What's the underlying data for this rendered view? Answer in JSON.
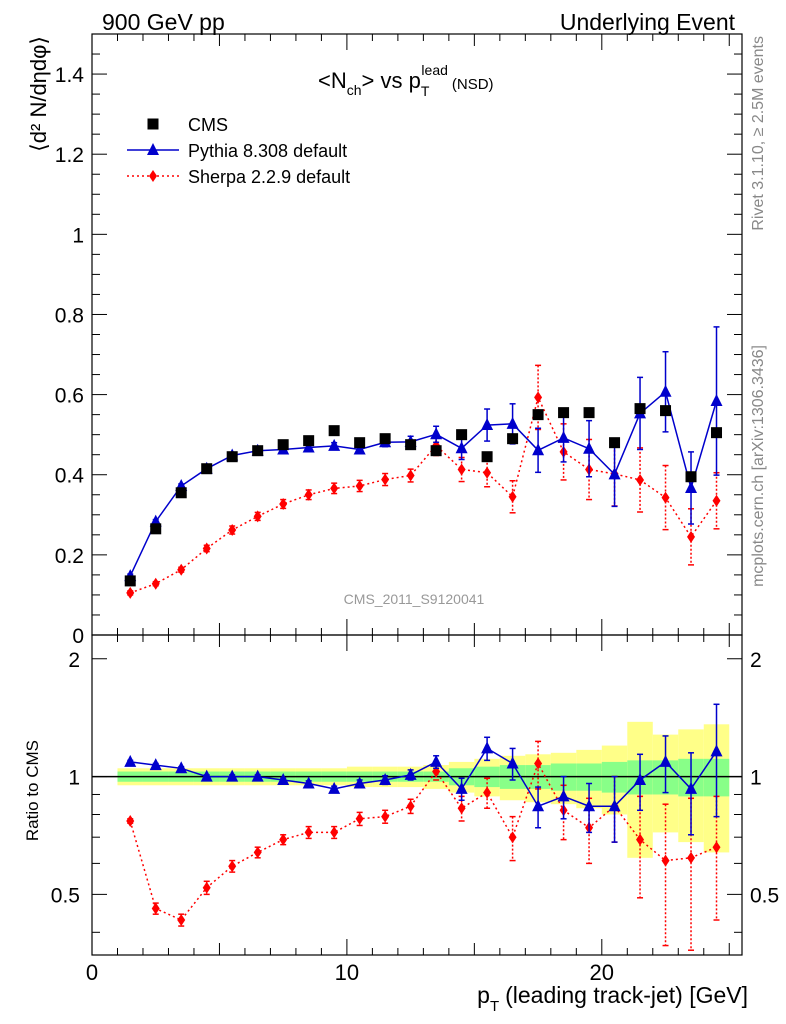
{
  "header": {
    "left": "900 GeV pp",
    "right": "Underlying Event"
  },
  "side_text": {
    "top": "Rivet 3.1.10, ≥ 2.5M events",
    "bottom": "mcplots.cern.ch [arXiv:1306.3436]"
  },
  "analysis_label": "CMS_2011_S9120041",
  "chart_data": {
    "type": "scatter",
    "title": {
      "prefix": "<N",
      "sub1": "ch",
      "mid": "> vs p",
      "sub2": "T",
      "sup": "lead",
      "suffix": "(NSD)"
    },
    "xlabel": {
      "p": "p",
      "sub": "T",
      "rest": "(leading track-jet) [GeV]"
    },
    "ylabel": "⟨d² N/dηdφ⟩",
    "ratio_ylabel": "Ratio to CMS",
    "xlim": [
      0,
      25.5
    ],
    "ylim": [
      0,
      1.5
    ],
    "ratio_ylim": [
      0.35,
      2.3
    ],
    "xticks": [
      0,
      10,
      20
    ],
    "yticks": [
      0,
      0.2,
      0.4,
      0.6,
      0.8,
      1,
      1.2,
      1.4
    ],
    "ytick_labels": [
      "0",
      "0.2",
      "0.4",
      "0.6",
      "0.8",
      "1",
      "1.2",
      "1.4"
    ],
    "ratio_yticks": [
      0.5,
      1,
      2
    ],
    "ratio_ytick_labels": [
      "0.5",
      "1",
      "2"
    ],
    "legend_position": "top-left",
    "x": [
      1.5,
      2.5,
      3.5,
      4.5,
      5.5,
      6.5,
      7.5,
      8.5,
      9.5,
      10.5,
      11.5,
      12.5,
      13.5,
      14.5,
      15.5,
      16.5,
      17.5,
      18.5,
      19.5,
      20.5,
      21.5,
      22.5,
      23.5,
      24.5
    ],
    "bin_edges": [
      1,
      2,
      3,
      4,
      5,
      6,
      7,
      8,
      9,
      10,
      11,
      12,
      13,
      14,
      15,
      16,
      17,
      18,
      19,
      20,
      21,
      22,
      23,
      24,
      25
    ],
    "series": [
      {
        "name": "CMS",
        "color": "#000000",
        "marker": "square",
        "values": [
          0.135,
          0.265,
          0.355,
          0.415,
          0.445,
          0.46,
          0.475,
          0.485,
          0.51,
          0.48,
          0.49,
          0.475,
          0.46,
          0.5,
          0.445,
          0.49,
          0.55,
          0.555,
          0.555,
          0.48,
          0.565,
          0.56,
          0.395,
          0.505
        ],
        "band_stat": [
          0.03,
          0.03,
          0.03,
          0.03,
          0.03,
          0.03,
          0.03,
          0.03,
          0.03,
          0.03,
          0.03,
          0.03,
          0.03,
          0.05,
          0.06,
          0.07,
          0.07,
          0.08,
          0.08,
          0.09,
          0.1,
          0.1,
          0.11,
          0.11
        ],
        "band_total": [
          0.05,
          0.05,
          0.05,
          0.05,
          0.05,
          0.05,
          0.05,
          0.05,
          0.05,
          0.06,
          0.06,
          0.06,
          0.07,
          0.09,
          0.11,
          0.13,
          0.14,
          0.15,
          0.17,
          0.2,
          0.38,
          0.28,
          0.32,
          0.36
        ]
      },
      {
        "name": "Pythia 8.308 default",
        "color": "#0000cc",
        "marker": "triangle",
        "line": "solid",
        "values": [
          0.147,
          0.283,
          0.372,
          0.415,
          0.448,
          0.46,
          0.463,
          0.468,
          0.472,
          0.463,
          0.481,
          0.482,
          0.501,
          0.466,
          0.524,
          0.527,
          0.461,
          0.492,
          0.465,
          0.401,
          0.553,
          0.607,
          0.367,
          0.584
        ],
        "errors": [
          0.005,
          0.005,
          0.005,
          0.005,
          0.005,
          0.005,
          0.006,
          0.007,
          0.008,
          0.009,
          0.011,
          0.014,
          0.02,
          0.028,
          0.04,
          0.05,
          0.055,
          0.06,
          0.07,
          0.08,
          0.09,
          0.1,
          0.09,
          0.185
        ],
        "ratio": [
          1.09,
          1.07,
          1.05,
          1.0,
          1.0,
          1.0,
          0.98,
          0.96,
          0.93,
          0.96,
          0.98,
          1.01,
          1.09,
          0.93,
          1.18,
          1.08,
          0.84,
          0.89,
          0.84,
          0.84,
          0.98,
          1.09,
          0.93,
          1.16
        ],
        "ratio_errors": [
          0.01,
          0.01,
          0.01,
          0.01,
          0.01,
          0.01,
          0.01,
          0.015,
          0.015,
          0.02,
          0.025,
          0.03,
          0.04,
          0.06,
          0.08,
          0.1,
          0.1,
          0.11,
          0.12,
          0.16,
          0.16,
          0.18,
          0.22,
          0.37
        ]
      },
      {
        "name": "Sherpa 2.2.9 default",
        "color": "#ff0000",
        "marker": "diamond",
        "line": "dotted",
        "values": [
          0.105,
          0.128,
          0.163,
          0.216,
          0.262,
          0.296,
          0.327,
          0.35,
          0.366,
          0.372,
          0.388,
          0.398,
          0.473,
          0.413,
          0.405,
          0.345,
          0.593,
          0.457,
          0.413,
          0.402,
          0.387,
          0.343,
          0.245,
          0.335
        ],
        "errors": [
          0.005,
          0.005,
          0.006,
          0.008,
          0.01,
          0.01,
          0.011,
          0.012,
          0.013,
          0.014,
          0.015,
          0.016,
          0.025,
          0.03,
          0.035,
          0.04,
          0.08,
          0.07,
          0.075,
          0.08,
          0.08,
          0.08,
          0.07,
          0.07
        ],
        "ratio": [
          0.77,
          0.46,
          0.43,
          0.52,
          0.59,
          0.64,
          0.69,
          0.72,
          0.72,
          0.78,
          0.79,
          0.84,
          1.03,
          0.83,
          0.91,
          0.7,
          1.08,
          0.82,
          0.74,
          0.84,
          0.69,
          0.61,
          0.62,
          0.66
        ],
        "ratio_errors": [
          0.01,
          0.015,
          0.015,
          0.02,
          0.02,
          0.02,
          0.02,
          0.025,
          0.025,
          0.03,
          0.03,
          0.035,
          0.05,
          0.06,
          0.08,
          0.09,
          0.15,
          0.13,
          0.14,
          0.16,
          0.2,
          0.24,
          0.26,
          0.23
        ]
      }
    ]
  }
}
